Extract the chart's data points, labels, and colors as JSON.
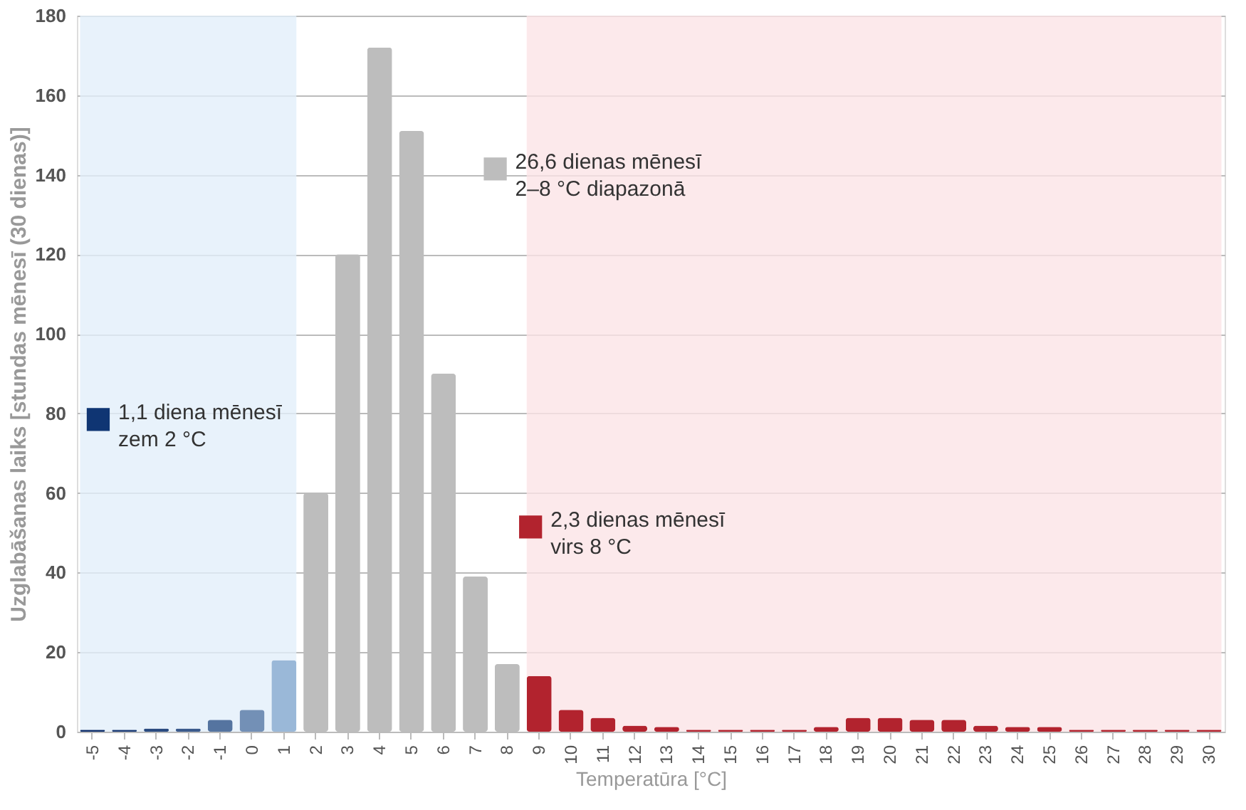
{
  "chart_data": {
    "type": "bar",
    "xlabel": "Temperatūra [°C]",
    "ylabel": "Uzglabāšanas laiks [stundas mēnesī (30 dienas)]",
    "categories": [
      "-5",
      "-4",
      "-3",
      "-2",
      "-1",
      "0",
      "1",
      "2",
      "3",
      "4",
      "5",
      "6",
      "7",
      "8",
      "9",
      "10",
      "11",
      "12",
      "13",
      "14",
      "15",
      "16",
      "17",
      "18",
      "19",
      "20",
      "21",
      "22",
      "23",
      "24",
      "25",
      "26",
      "27",
      "28",
      "29",
      "30"
    ],
    "series": [
      {
        "name": "1,1 diena mēnesī\nzem 2 °C",
        "color": "#0f3573",
        "colors": [
          "#0f2f6b",
          "#1a3a74",
          "#2a4a80",
          "#3a5a8c",
          "#5574a0",
          "#7390b6",
          "#9ab8d8",
          null,
          null,
          null,
          null,
          null,
          null,
          null,
          null,
          null,
          null,
          null,
          null,
          null,
          null,
          null,
          null,
          null,
          null,
          null,
          null,
          null,
          null,
          null,
          null,
          null,
          null,
          null,
          null,
          null
        ],
        "values": [
          0.5,
          0.5,
          0.8,
          0.8,
          3,
          5.5,
          18,
          null,
          null,
          null,
          null,
          null,
          null,
          null,
          null,
          null,
          null,
          null,
          null,
          null,
          null,
          null,
          null,
          null,
          null,
          null,
          null,
          null,
          null,
          null,
          null,
          null,
          null,
          null,
          null,
          null
        ]
      },
      {
        "name": "26,6 dienas mēnesī\n2–8 °C diapazonā",
        "color": "#bdbdbd",
        "values": [
          null,
          null,
          null,
          null,
          null,
          null,
          null,
          60,
          120,
          172,
          151,
          90,
          39,
          17,
          null,
          null,
          null,
          null,
          null,
          null,
          null,
          null,
          null,
          null,
          null,
          null,
          null,
          null,
          null,
          null,
          null,
          null,
          null,
          null,
          null,
          null
        ]
      },
      {
        "name": "2,3 dienas mēnesī\nvirs 8 °C",
        "color": "#b2232e",
        "values": [
          null,
          null,
          null,
          null,
          null,
          null,
          null,
          null,
          null,
          null,
          null,
          null,
          null,
          null,
          14,
          5.5,
          3.5,
          1.5,
          1.2,
          0.5,
          0.5,
          0.5,
          0.5,
          1.2,
          3.5,
          3.5,
          3,
          3,
          1.5,
          1.2,
          1.2,
          0.5,
          0.5,
          0.5,
          0.5,
          0.5
        ]
      }
    ],
    "bands": [
      {
        "axis": "x",
        "from": "-5",
        "to": "1",
        "color": "#e2effa"
      },
      {
        "axis": "x",
        "from": "9",
        "to": "30",
        "color": "#fbe4e6"
      }
    ],
    "ylim": [
      0,
      180
    ],
    "yticks": [
      0,
      20,
      40,
      60,
      80,
      100,
      120,
      140,
      160,
      180
    ],
    "grid": "y",
    "legend": "left"
  }
}
